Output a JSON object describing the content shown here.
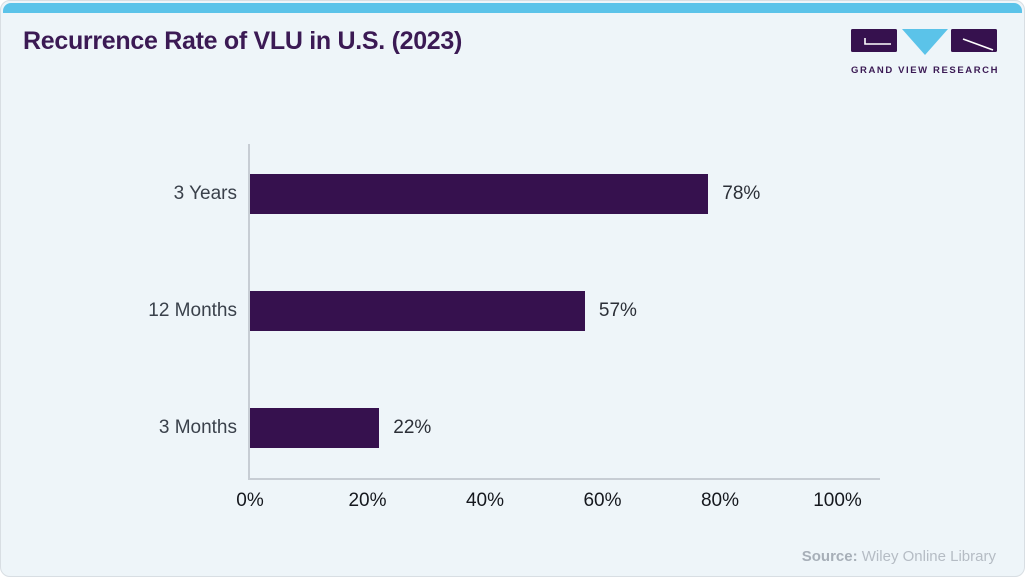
{
  "header": {
    "title": "Recurrence Rate of VLU in U.S. (2023)",
    "logo_text": "GRAND VIEW RESEARCH"
  },
  "chart_data": {
    "type": "bar",
    "orientation": "horizontal",
    "title": "Recurrence Rate of VLU in U.S. (2023)",
    "categories": [
      "3 Years",
      "12 Months",
      "3 Months"
    ],
    "values": [
      78,
      57,
      22
    ],
    "data_labels": [
      "78%",
      "57%",
      "22%"
    ],
    "xlabel": "",
    "ylabel": "",
    "xlim": [
      0,
      100
    ],
    "x_ticks": [
      {
        "value": 0,
        "label": "0%"
      },
      {
        "value": 20,
        "label": "20%"
      },
      {
        "value": 40,
        "label": "40%"
      },
      {
        "value": 60,
        "label": "60%"
      },
      {
        "value": 80,
        "label": "80%"
      },
      {
        "value": 100,
        "label": "100%"
      }
    ],
    "grid": false,
    "legend": false,
    "value_label_position": "outside-right"
  },
  "source": {
    "prefix": "Source:",
    "text": " Wiley Online Library"
  },
  "colors": {
    "accent_blue": "#5bc3e9",
    "bar_purple": "#36114e",
    "title_purple": "#3b1a54",
    "card_background": "#eef5f9",
    "axis_line": "#c7cdd4"
  }
}
